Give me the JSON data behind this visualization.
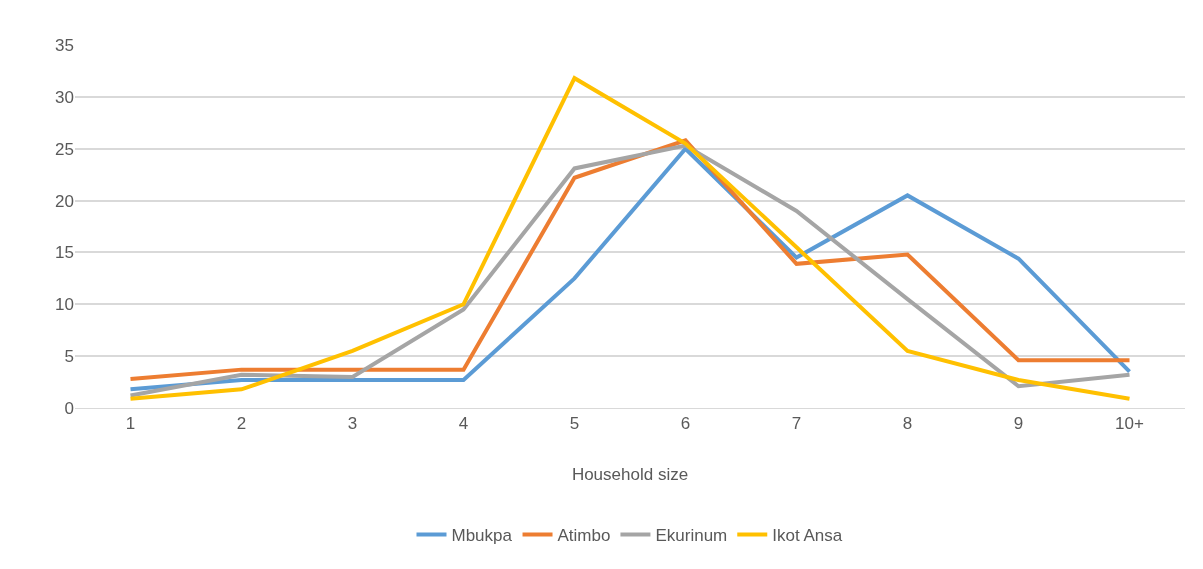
{
  "chart_data": {
    "type": "line",
    "xlabel": "Household size",
    "categories": [
      "1",
      "2",
      "3",
      "4",
      "5",
      "6",
      "7",
      "8",
      "9",
      "10+"
    ],
    "series": [
      {
        "name": "Mbukpa",
        "color": "#5b9bd5",
        "values": [
          1.8,
          2.7,
          2.7,
          2.7,
          12.5,
          25,
          14.5,
          20.5,
          14.4,
          3.5
        ]
      },
      {
        "name": "Atimbo",
        "color": "#ed7d31",
        "values": [
          2.8,
          3.7,
          3.7,
          3.7,
          22.2,
          25.8,
          13.9,
          14.8,
          4.6,
          4.6
        ]
      },
      {
        "name": "Ekurinum",
        "color": "#a5a5a5",
        "values": [
          1.2,
          3.2,
          3.0,
          9.5,
          23.1,
          25.3,
          19,
          10.5,
          2.1,
          3.2
        ]
      },
      {
        "name": "Ikot Ansa",
        "color": "#ffc000",
        "values": [
          0.9,
          1.8,
          5.5,
          10,
          31.8,
          25.5,
          15.5,
          5.5,
          2.7,
          0.9
        ]
      }
    ],
    "ylim": [
      0,
      35
    ],
    "yticks": [
      0,
      5,
      10,
      15,
      20,
      25,
      30,
      35
    ],
    "grid": "y",
    "legend": "bottom",
    "marker": "none",
    "line_style": "solid"
  }
}
